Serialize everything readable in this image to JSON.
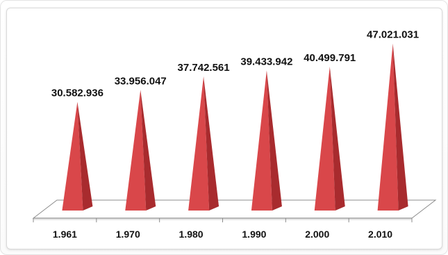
{
  "chart_data": {
    "type": "bar",
    "shape": "3d-pyramid",
    "categories": [
      "1.961",
      "1.970",
      "1.980",
      "1.990",
      "2.000",
      "2.010"
    ],
    "values": [
      30582936,
      33956047,
      37742561,
      39433942,
      40499791,
      47021031
    ],
    "data_labels": [
      "30.582.936",
      "33.956.047",
      "37.742.561",
      "39.433.942",
      "40.499.791",
      "47.021.031"
    ],
    "title": "",
    "xlabel": "",
    "ylabel": "",
    "ylim": [
      0,
      50000000
    ],
    "grid": false,
    "legend": "none",
    "colors": {
      "face_light": "#d9474a",
      "face_dark": "#a82b2e",
      "floor": "#ffffff",
      "floor_edge": "#8c8c8c"
    }
  }
}
